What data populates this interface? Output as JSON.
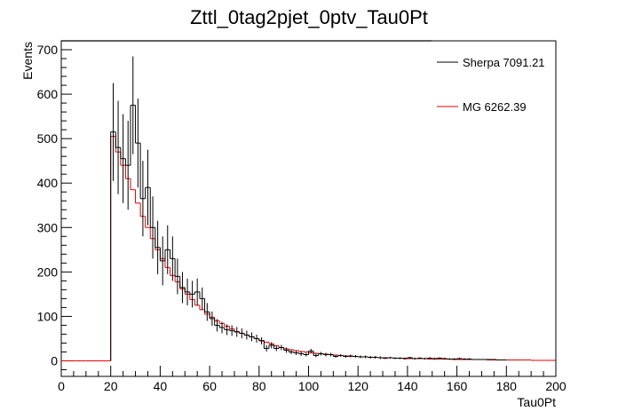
{
  "chart_data": {
    "type": "histogram",
    "title": "Zttl_0tag2pjet_0ptv_Tau0Pt",
    "xlabel": "Tau0Pt",
    "ylabel": "Events",
    "xlim": [
      0,
      200
    ],
    "ylim": [
      -35,
      720
    ],
    "xticks": [
      "0",
      "20",
      "40",
      "60",
      "80",
      "100",
      "120",
      "140",
      "160",
      "180",
      "200"
    ],
    "yticks": [
      "0",
      "100",
      "200",
      "300",
      "400",
      "500",
      "600",
      "700"
    ],
    "legend_position": "top-right",
    "bin_width": 2,
    "series": [
      {
        "name": "Sherpa 7091.21",
        "color": "#000000",
        "x_start": 20,
        "values": [
          515,
          480,
          455,
          440,
          575,
          490,
          365,
          390,
          300,
          255,
          225,
          250,
          230,
          190,
          165,
          155,
          150,
          155,
          140,
          110,
          95,
          80,
          75,
          70,
          68,
          65,
          62,
          58,
          54,
          50,
          45,
          28,
          35,
          28,
          30,
          24,
          20,
          18,
          16,
          14,
          22,
          12,
          16,
          14,
          14,
          10,
          12,
          10,
          11,
          10,
          9,
          9,
          8,
          8,
          7,
          6,
          7,
          6,
          6,
          5,
          7,
          5,
          6,
          5,
          6,
          5,
          6,
          5,
          4,
          4,
          5,
          4,
          4,
          3,
          3,
          3,
          3,
          3,
          2,
          2
        ],
        "errors": [
          110,
          105,
          100,
          100,
          110,
          100,
          85,
          85,
          70,
          60,
          55,
          55,
          50,
          40,
          35,
          30,
          30,
          30,
          25,
          20,
          16,
          14,
          13,
          12,
          12,
          11,
          11,
          10,
          10,
          9,
          8,
          7,
          7,
          6,
          6,
          6,
          5,
          5,
          5,
          4,
          5,
          4,
          4,
          4,
          4,
          3,
          3,
          3,
          3,
          3,
          3,
          3,
          3,
          3,
          3,
          2,
          2,
          2,
          2,
          2,
          2,
          2,
          2,
          2,
          2,
          2,
          2,
          2,
          2,
          2,
          2,
          2,
          2,
          1,
          1,
          1,
          1,
          1,
          1,
          1
        ]
      },
      {
        "name": "MG 6262.39",
        "color": "#e00000",
        "x_start": 0,
        "values": [
          0,
          0,
          0,
          0,
          0,
          0,
          0,
          0,
          0,
          0,
          505,
          470,
          440,
          410,
          385,
          355,
          325,
          300,
          275,
          250,
          230,
          210,
          192,
          178,
          162,
          150,
          138,
          125,
          115,
          105,
          98,
          90,
          84,
          78,
          72,
          66,
          62,
          58,
          54,
          50,
          46,
          42,
          38,
          34,
          30,
          27,
          25,
          23,
          21,
          20,
          18,
          17,
          16,
          15,
          14,
          13,
          12,
          11,
          10,
          10,
          9,
          9,
          8,
          8,
          7,
          7,
          7,
          6,
          6,
          6,
          5,
          5,
          5,
          5,
          4,
          4,
          4,
          4,
          4,
          3,
          3,
          3,
          3,
          3,
          3,
          3,
          2,
          2,
          2,
          2,
          2,
          2,
          2,
          2,
          2,
          1,
          1,
          1,
          1,
          1
        ]
      }
    ]
  }
}
